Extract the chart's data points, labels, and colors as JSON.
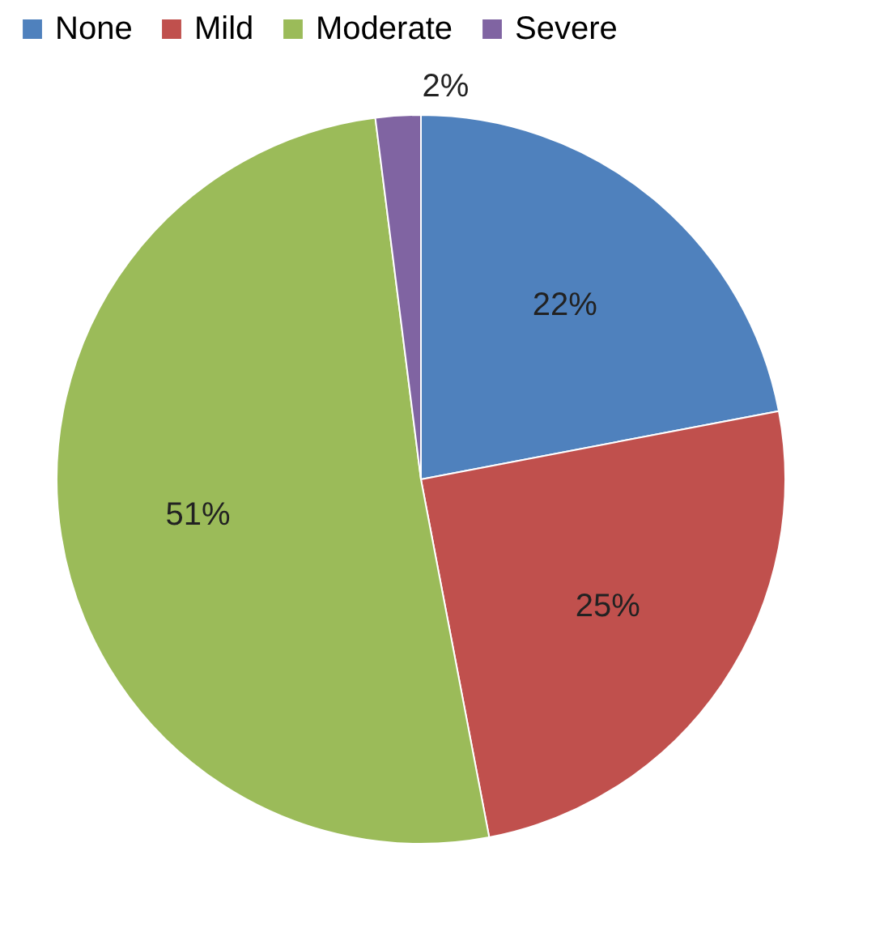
{
  "chart_data": {
    "type": "pie",
    "categories": [
      "None",
      "Mild",
      "Moderate",
      "Severe"
    ],
    "values": [
      22,
      25,
      51,
      2
    ],
    "colors": [
      "#4f81bd",
      "#c0504d",
      "#9bbb59",
      "#8064a2"
    ],
    "value_labels": [
      "22%",
      "25%",
      "51%",
      "2%"
    ],
    "legend": "top"
  }
}
